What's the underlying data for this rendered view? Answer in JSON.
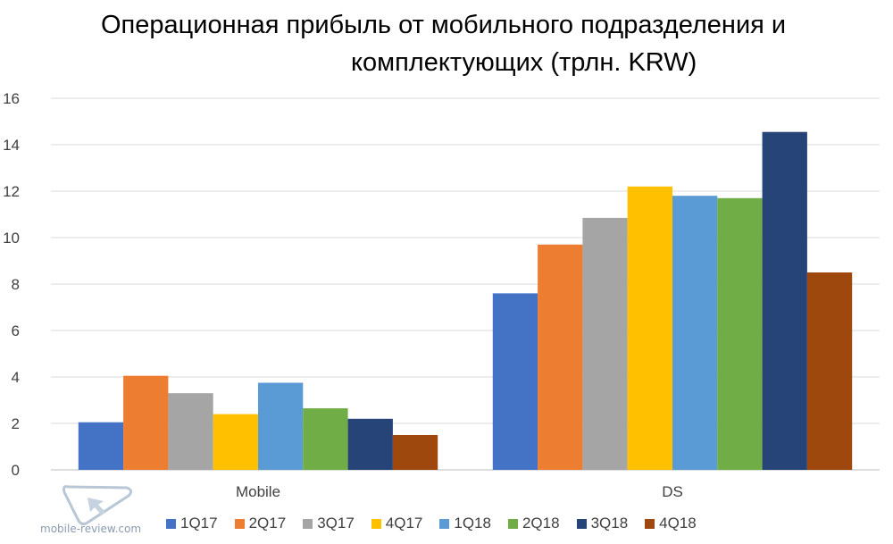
{
  "chart_data": {
    "type": "bar",
    "title_lines": [
      "Операционная прибыль от мобильного подразделения и",
      "комплектующих (трлн. KRW)"
    ],
    "categories": [
      "Mobile",
      "DS"
    ],
    "series": [
      {
        "name": "1Q17",
        "color": "#4472c4",
        "values": [
          2.05,
          7.6
        ]
      },
      {
        "name": "2Q17",
        "color": "#ed7d31",
        "values": [
          4.05,
          9.7
        ]
      },
      {
        "name": "3Q17",
        "color": "#a5a5a5",
        "values": [
          3.3,
          10.85
        ]
      },
      {
        "name": "4Q17",
        "color": "#ffc000",
        "values": [
          2.4,
          12.2
        ]
      },
      {
        "name": "1Q18",
        "color": "#5b9bd5",
        "values": [
          3.75,
          11.8
        ]
      },
      {
        "name": "2Q18",
        "color": "#70ad47",
        "values": [
          2.65,
          11.7
        ]
      },
      {
        "name": "3Q18",
        "color": "#264478",
        "values": [
          2.2,
          14.55
        ]
      },
      {
        "name": "4Q18",
        "color": "#9e480e",
        "values": [
          1.5,
          8.5
        ]
      }
    ],
    "ylim": [
      0,
      16
    ],
    "yticks": [
      "0",
      "2",
      "4",
      "6",
      "8",
      "10",
      "12",
      "14",
      "16"
    ],
    "grid": true,
    "legend_position": "bottom"
  },
  "watermark": {
    "text": "mobile-review.com"
  }
}
